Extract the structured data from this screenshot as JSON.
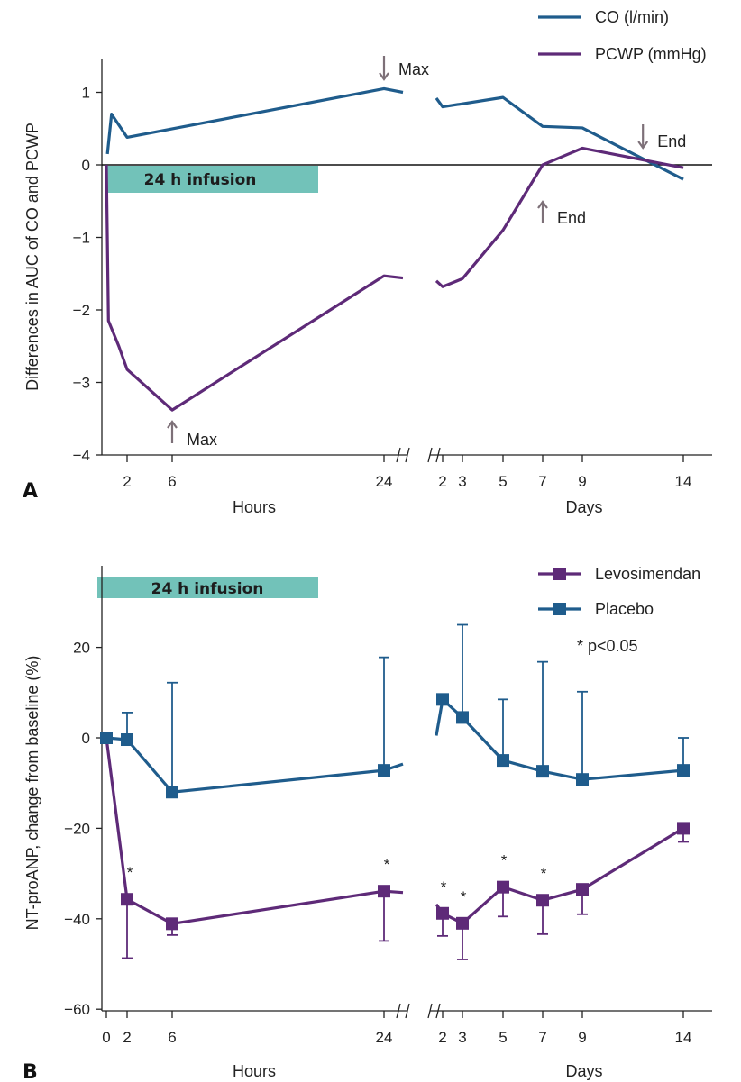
{
  "colors": {
    "co": "#1f5c8c",
    "pcwp": "#5e2a78",
    "infusion": "#72c2b9",
    "arrow": "#7d7078"
  },
  "chart_data": [
    {
      "panel": "A",
      "type": "line",
      "ylabel": "Differences in AUC of CO and PCWP",
      "ylim": [
        -4,
        1.5
      ],
      "yticks": [
        1,
        0,
        -1,
        -2,
        -3,
        -4
      ],
      "ytick_labels": [
        "1",
        "0",
        "−1",
        "−2",
        "−3",
        "−4"
      ],
      "x_segments": [
        {
          "label": "Hours",
          "ticks": [
            2,
            6,
            24
          ]
        },
        {
          "label": "Days",
          "ticks": [
            2,
            3,
            5,
            7,
            9,
            14
          ]
        }
      ],
      "infusion_label": "24 h infusion",
      "series": [
        {
          "name": "CO (l/min)",
          "hours": [
            [
              0.1,
              0.15
            ],
            [
              0.5,
              0.7
            ],
            [
              2,
              0.38
            ],
            [
              24,
              1.05
            ],
            [
              25.2,
              1.0
            ]
          ],
          "days": [
            [
              1.8,
              0.92
            ],
            [
              2,
              0.8
            ],
            [
              5,
              0.93
            ],
            [
              7,
              0.53
            ],
            [
              9,
              0.51
            ],
            [
              14,
              -0.2
            ]
          ]
        },
        {
          "name": "PCWP (mmHg)",
          "hours": [
            [
              0,
              0
            ],
            [
              0.2,
              -2.15
            ],
            [
              1.2,
              -2.5
            ],
            [
              2,
              -2.82
            ],
            [
              6,
              -3.38
            ],
            [
              24,
              -1.53
            ],
            [
              25.2,
              -1.56
            ]
          ],
          "days": [
            [
              1.8,
              -1.6
            ],
            [
              2,
              -1.68
            ],
            [
              3,
              -1.57
            ],
            [
              5,
              -0.9
            ],
            [
              7,
              0.0
            ],
            [
              9,
              0.23
            ],
            [
              14,
              -0.04
            ]
          ]
        }
      ],
      "annotations": [
        {
          "text": "Max",
          "arrow": "down",
          "at": "hours 24"
        },
        {
          "text": "Max",
          "arrow": "up",
          "at": "hours 6"
        },
        {
          "text": "End",
          "arrow": "down",
          "at": "days 12"
        },
        {
          "text": "End",
          "arrow": "up",
          "at": "days 7"
        }
      ]
    },
    {
      "panel": "B",
      "type": "line",
      "ylabel": "NT-proANP, change from baseline (%)",
      "ylim": [
        -60,
        35
      ],
      "yticks": [
        20,
        0,
        -20,
        -40,
        -60
      ],
      "ytick_labels": [
        "20",
        "0",
        "−20",
        "−40",
        "−60"
      ],
      "x_segments": [
        {
          "label": "Hours",
          "ticks": [
            0,
            2,
            6,
            24
          ]
        },
        {
          "label": "Days",
          "ticks": [
            2,
            3,
            5,
            7,
            9,
            14
          ]
        }
      ],
      "infusion_label": "24 h infusion",
      "significance_note": "* p<0.05",
      "series": [
        {
          "name": "Levosimendan",
          "hours": [
            [
              0,
              0
            ],
            [
              2,
              -35.7
            ],
            [
              6,
              -41.1
            ],
            [
              24,
              -33.9
            ]
          ],
          "hours_tail": [
            [
              25.2,
              -34.2
            ]
          ],
          "hours_err": [
            [
              0,
              0,
              0
            ],
            [
              2,
              13,
              0
            ],
            [
              6,
              2.5,
              0
            ],
            [
              24,
              11,
              0
            ]
          ],
          "hours_star": [
            2,
            24
          ],
          "days": [
            [
              2,
              -38.8
            ],
            [
              3,
              -41
            ],
            [
              5,
              -33
            ],
            [
              7,
              -35.9
            ],
            [
              9,
              -33.5
            ],
            [
              14,
              -20
            ]
          ],
          "days_lead": [
            [
              1.8,
              -36.8
            ]
          ],
          "days_err": [
            [
              2,
              5,
              0
            ],
            [
              3,
              8,
              0
            ],
            [
              5,
              6.5,
              0
            ],
            [
              7,
              7.5,
              0
            ],
            [
              9,
              5.5,
              0
            ],
            [
              14,
              3,
              0
            ]
          ],
          "days_star": [
            2,
            3,
            5,
            7
          ]
        },
        {
          "name": "Placebo",
          "hours": [
            [
              0,
              0
            ],
            [
              2,
              -0.4
            ],
            [
              6,
              -12
            ],
            [
              24,
              -7.2
            ]
          ],
          "hours_tail": [
            [
              25.2,
              -5.8
            ]
          ],
          "hours_err": [
            [
              0,
              0,
              0
            ],
            [
              2,
              0,
              6
            ],
            [
              6,
              0,
              24.2
            ],
            [
              24,
              0,
              25
            ]
          ],
          "hours_star": [],
          "days": [
            [
              2,
              8.5
            ],
            [
              3,
              4.5
            ],
            [
              5,
              -5
            ],
            [
              7,
              -7.4
            ],
            [
              9,
              -9.2
            ],
            [
              14,
              -7.2
            ]
          ],
          "days_lead": [
            [
              1.8,
              0.5
            ]
          ],
          "days_err": [
            [
              2,
              0,
              0
            ],
            [
              3,
              0,
              20.5
            ],
            [
              5,
              0,
              13.5
            ],
            [
              7,
              0,
              24.2
            ],
            [
              9,
              0,
              19.4
            ],
            [
              14,
              0,
              7.2
            ]
          ],
          "days_star": []
        }
      ]
    }
  ],
  "panel_labels": [
    "A",
    "B"
  ]
}
